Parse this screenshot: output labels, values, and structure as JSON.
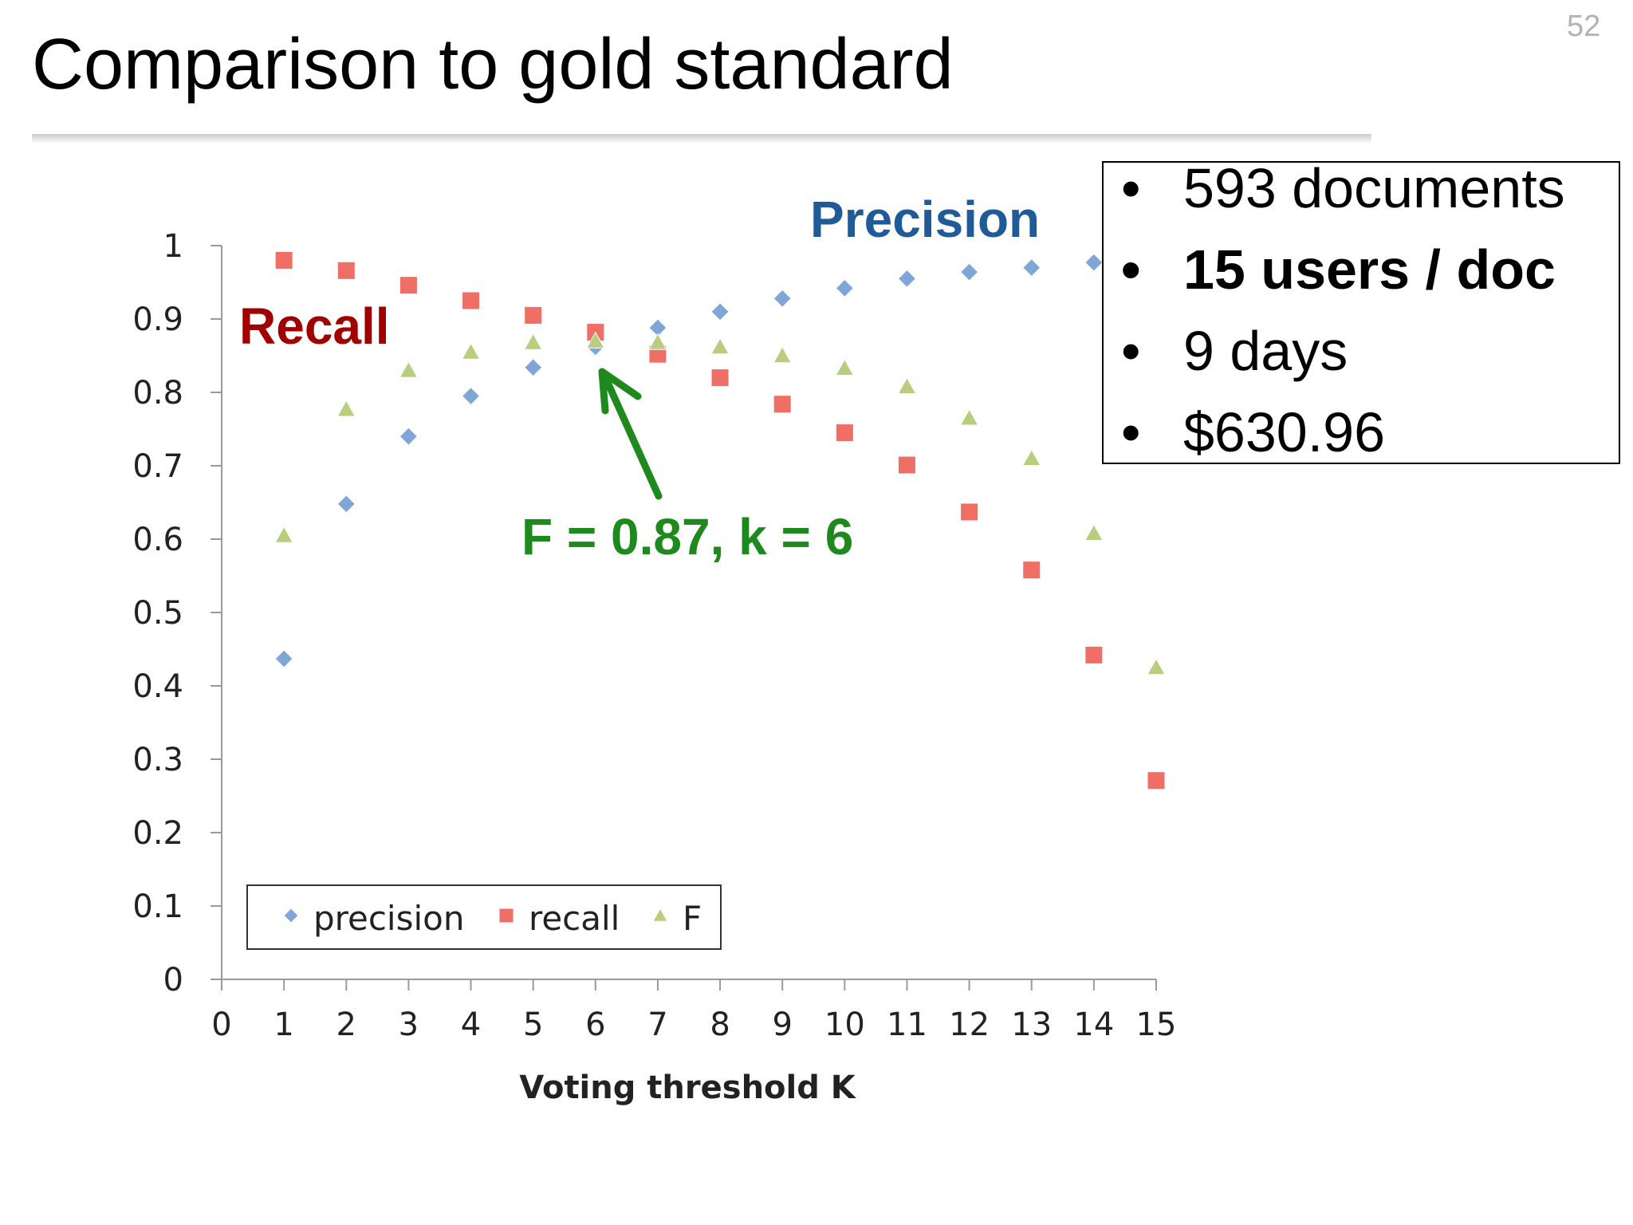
{
  "slide": {
    "title": "Comparison to gold standard",
    "number": "52"
  },
  "info_box": {
    "bullets": [
      "593 documents",
      "15 users / doc",
      "9 days",
      "$630.96"
    ],
    "bold_bullet_index": 1,
    "bullet_symbol": "•"
  },
  "annotations": {
    "recall": "Recall",
    "precision": "Precision",
    "f_optimum": "F = 0.87, k = 6",
    "colors": {
      "recall": "#a10000",
      "precision": "#1f5a99",
      "f_optimum": "#1e8a1e"
    }
  },
  "chart_data": {
    "type": "scatter",
    "title": "",
    "xlabel": "Voting threshold K",
    "ylabel": "",
    "xlim": [
      0,
      15
    ],
    "ylim": [
      0,
      1
    ],
    "x_ticks": [
      "0",
      "1",
      "2",
      "3",
      "4",
      "5",
      "6",
      "7",
      "8",
      "9",
      "10",
      "11",
      "12",
      "13",
      "14",
      "15"
    ],
    "y_ticks": [
      "0",
      "0.1",
      "0.2",
      "0.3",
      "0.4",
      "0.5",
      "0.6",
      "0.7",
      "0.8",
      "0.9",
      "1"
    ],
    "grid": false,
    "legend_position": "bottom-left",
    "x": [
      1,
      2,
      3,
      4,
      5,
      6,
      7,
      8,
      9,
      10,
      11,
      12,
      13,
      14,
      15
    ],
    "series": [
      {
        "name": "precision",
        "marker": "diamond",
        "color": "#7fa6d6",
        "values": [
          0.437,
          0.648,
          0.74,
          0.795,
          0.834,
          0.862,
          0.888,
          0.91,
          0.928,
          0.942,
          0.955,
          0.964,
          0.97,
          0.977,
          null
        ]
      },
      {
        "name": "recall",
        "marker": "square",
        "color": "#ef6f66",
        "values": [
          0.98,
          0.966,
          0.946,
          0.925,
          0.905,
          0.882,
          0.852,
          0.82,
          0.784,
          0.745,
          0.701,
          0.637,
          0.558,
          0.442,
          0.271
        ]
      },
      {
        "name": "F",
        "marker": "triangle",
        "color": "#b9cd7e",
        "values": [
          0.605,
          0.777,
          0.83,
          0.855,
          0.868,
          0.87,
          0.868,
          0.862,
          0.85,
          0.833,
          0.808,
          0.765,
          0.71,
          0.608,
          0.425
        ]
      }
    ]
  }
}
